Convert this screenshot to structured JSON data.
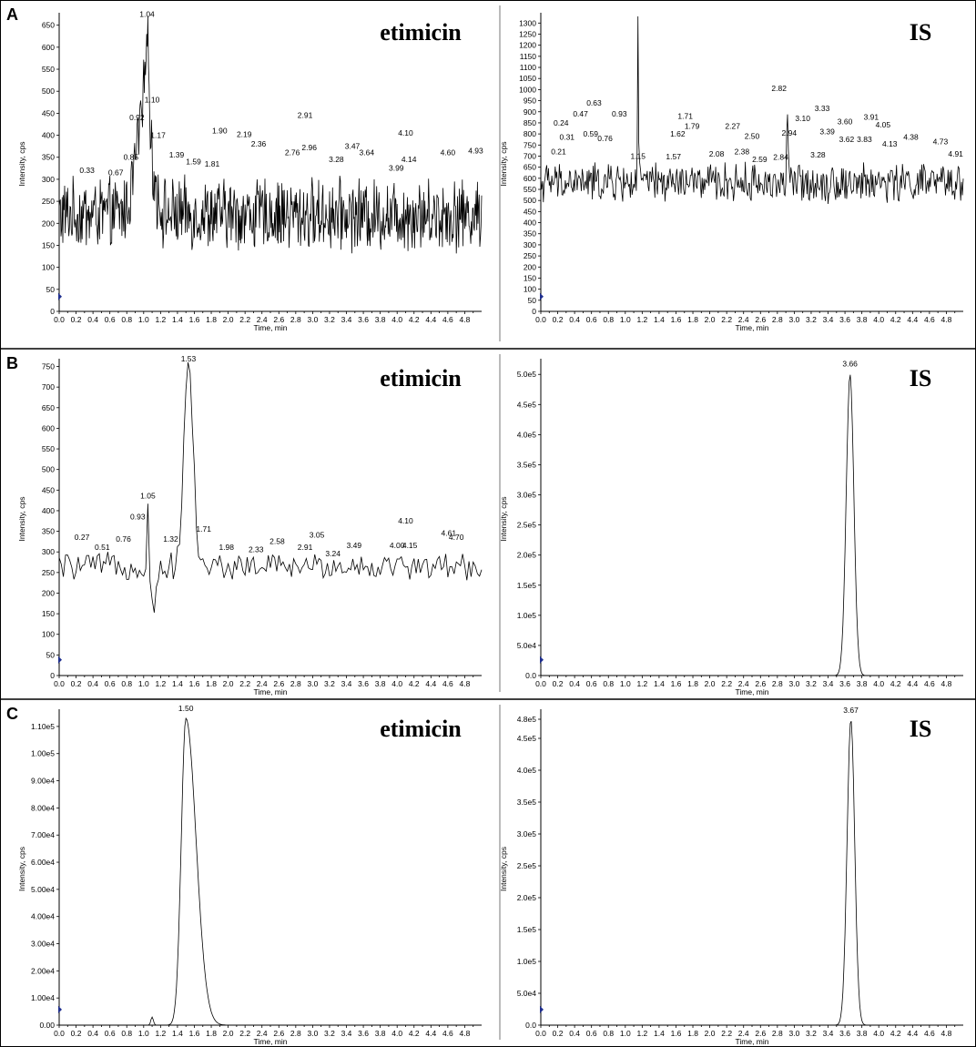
{
  "figure": {
    "row_labels": [
      "A",
      "B",
      "C"
    ],
    "x_axis_label": "Time, min",
    "y_axis_label": "Intensity, cps",
    "left_title": "etimicin",
    "right_title": "IS"
  },
  "chart_data": [
    {
      "panel": "A-left",
      "type": "line",
      "title": "etimicin",
      "xlabel": "Time, min",
      "ylabel": "Intensity, cps",
      "xlim": [
        0,
        5
      ],
      "ylim": [
        0,
        670
      ],
      "x_ticks": [
        "0.0",
        "0.2",
        "0.4",
        "0.6",
        "0.8",
        "1.0",
        "1.2",
        "1.4",
        "1.6",
        "1.8",
        "2.0",
        "2.2",
        "2.4",
        "2.6",
        "2.8",
        "3.0",
        "3.2",
        "3.4",
        "3.6",
        "3.8",
        "4.0",
        "4.2",
        "4.4",
        "4.6",
        "4.8"
      ],
      "y_ticks": [
        {
          "v": 0,
          "t": "0"
        },
        {
          "v": 50,
          "t": "50"
        },
        {
          "v": 100,
          "t": "100"
        },
        {
          "v": 150,
          "t": "150"
        },
        {
          "v": 200,
          "t": "200"
        },
        {
          "v": 250,
          "t": "250"
        },
        {
          "v": 300,
          "t": "300"
        },
        {
          "v": 350,
          "t": "350"
        },
        {
          "v": 400,
          "t": "400"
        },
        {
          "v": 450,
          "t": "450"
        },
        {
          "v": 500,
          "t": "500"
        },
        {
          "v": 550,
          "t": "550"
        },
        {
          "v": 600,
          "t": "600"
        },
        {
          "v": 650,
          "t": "650"
        }
      ],
      "noise": {
        "baseline": 220,
        "amplitude": 70,
        "points": 700
      },
      "peaks": [
        {
          "rt": 1.0,
          "height": 230,
          "width": 0.09
        },
        {
          "rt": 1.04,
          "height": 250,
          "width": 0.02
        }
      ],
      "peak_labels": [
        {
          "x": 0.33,
          "y": 310,
          "t": "0.33"
        },
        {
          "x": 0.67,
          "y": 305,
          "t": "0.67"
        },
        {
          "x": 0.85,
          "y": 340,
          "t": "0.85"
        },
        {
          "x": 0.92,
          "y": 430,
          "t": "0.92"
        },
        {
          "x": 1.04,
          "y": 665,
          "t": "1.04"
        },
        {
          "x": 1.1,
          "y": 470,
          "t": "1.10"
        },
        {
          "x": 1.17,
          "y": 390,
          "t": "1.17"
        },
        {
          "x": 1.39,
          "y": 345,
          "t": "1.39"
        },
        {
          "x": 1.59,
          "y": 330,
          "t": "1.59"
        },
        {
          "x": 1.81,
          "y": 325,
          "t": "1.81"
        },
        {
          "x": 1.9,
          "y": 400,
          "t": "1.90"
        },
        {
          "x": 2.19,
          "y": 392,
          "t": "2.19"
        },
        {
          "x": 2.36,
          "y": 370,
          "t": "2.36"
        },
        {
          "x": 2.76,
          "y": 350,
          "t": "2.76"
        },
        {
          "x": 2.91,
          "y": 435,
          "t": "2.91"
        },
        {
          "x": 2.96,
          "y": 362,
          "t": "2.96"
        },
        {
          "x": 3.28,
          "y": 335,
          "t": "3.28"
        },
        {
          "x": 3.47,
          "y": 365,
          "t": "3.47"
        },
        {
          "x": 3.64,
          "y": 350,
          "t": "3.64"
        },
        {
          "x": 3.99,
          "y": 315,
          "t": "3.99"
        },
        {
          "x": 4.1,
          "y": 395,
          "t": "4.10"
        },
        {
          "x": 4.14,
          "y": 335,
          "t": "4.14"
        },
        {
          "x": 4.6,
          "y": 350,
          "t": "4.60"
        },
        {
          "x": 4.93,
          "y": 355,
          "t": "4.93"
        }
      ]
    },
    {
      "panel": "A-right",
      "type": "line",
      "title": "IS",
      "xlabel": "Time, min",
      "ylabel": "Intensity, cps",
      "xlim": [
        0,
        5
      ],
      "ylim": [
        0,
        1330
      ],
      "x_ticks": [
        "0.0",
        "0.2",
        "0.4",
        "0.6",
        "0.8",
        "1.0",
        "1.2",
        "1.4",
        "1.6",
        "1.8",
        "2.0",
        "2.2",
        "2.4",
        "2.6",
        "2.8",
        "3.0",
        "3.2",
        "3.4",
        "3.6",
        "3.8",
        "4.0",
        "4.2",
        "4.4",
        "4.6",
        "4.8"
      ],
      "y_ticks": [
        {
          "v": 0,
          "t": "0"
        },
        {
          "v": 50,
          "t": "50"
        },
        {
          "v": 100,
          "t": "100"
        },
        {
          "v": 150,
          "t": "150"
        },
        {
          "v": 200,
          "t": "200"
        },
        {
          "v": 250,
          "t": "250"
        },
        {
          "v": 300,
          "t": "300"
        },
        {
          "v": 350,
          "t": "350"
        },
        {
          "v": 400,
          "t": "400"
        },
        {
          "v": 450,
          "t": "450"
        },
        {
          "v": 500,
          "t": "500"
        },
        {
          "v": 550,
          "t": "550"
        },
        {
          "v": 600,
          "t": "600"
        },
        {
          "v": 650,
          "t": "650"
        },
        {
          "v": 700,
          "t": "700"
        },
        {
          "v": 750,
          "t": "750"
        },
        {
          "v": 800,
          "t": "800"
        },
        {
          "v": 850,
          "t": "850"
        },
        {
          "v": 900,
          "t": "900"
        },
        {
          "v": 950,
          "t": "950"
        },
        {
          "v": 1000,
          "t": "1000"
        },
        {
          "v": 1050,
          "t": "1050"
        },
        {
          "v": 1100,
          "t": "1100"
        },
        {
          "v": 1150,
          "t": "1150"
        },
        {
          "v": 1200,
          "t": "1200"
        },
        {
          "v": 1250,
          "t": "1250"
        },
        {
          "v": 1300,
          "t": "1300"
        }
      ],
      "noise": {
        "baseline": 580,
        "amplitude": 75,
        "points": 500
      },
      "peaks": [
        {
          "rt": 1.15,
          "height": 750,
          "width": 0.006
        },
        {
          "rt": 2.92,
          "height": 330,
          "width": 0.008
        }
      ],
      "peak_labels": [
        {
          "x": 0.21,
          "y": 700,
          "t": "0.21"
        },
        {
          "x": 0.24,
          "y": 830,
          "t": "0.24"
        },
        {
          "x": 0.31,
          "y": 765,
          "t": "0.31"
        },
        {
          "x": 0.47,
          "y": 870,
          "t": "0.47"
        },
        {
          "x": 0.59,
          "y": 780,
          "t": "0.59"
        },
        {
          "x": 0.63,
          "y": 920,
          "t": "0.63"
        },
        {
          "x": 0.76,
          "y": 760,
          "t": "0.76"
        },
        {
          "x": 0.93,
          "y": 870,
          "t": "0.93"
        },
        {
          "x": 1.15,
          "y": 680,
          "t": "1.15"
        },
        {
          "x": 1.57,
          "y": 678,
          "t": "1.57"
        },
        {
          "x": 1.62,
          "y": 780,
          "t": "1.62"
        },
        {
          "x": 1.71,
          "y": 860,
          "t": "1.71"
        },
        {
          "x": 1.79,
          "y": 815,
          "t": "1.79"
        },
        {
          "x": 2.08,
          "y": 690,
          "t": "2.08"
        },
        {
          "x": 2.27,
          "y": 815,
          "t": "2.27"
        },
        {
          "x": 2.38,
          "y": 700,
          "t": "2.38"
        },
        {
          "x": 2.5,
          "y": 770,
          "t": "2.50"
        },
        {
          "x": 2.59,
          "y": 665,
          "t": "2.59"
        },
        {
          "x": 2.82,
          "y": 985,
          "t": "2.82"
        },
        {
          "x": 2.84,
          "y": 675,
          "t": "2.84"
        },
        {
          "x": 2.94,
          "y": 785,
          "t": "2.94"
        },
        {
          "x": 3.1,
          "y": 850,
          "t": "3.10"
        },
        {
          "x": 3.28,
          "y": 685,
          "t": "3.28"
        },
        {
          "x": 3.33,
          "y": 895,
          "t": "3.33"
        },
        {
          "x": 3.39,
          "y": 790,
          "t": "3.39"
        },
        {
          "x": 3.6,
          "y": 835,
          "t": "3.60"
        },
        {
          "x": 3.62,
          "y": 755,
          "t": "3.62"
        },
        {
          "x": 3.83,
          "y": 755,
          "t": "3.83"
        },
        {
          "x": 3.91,
          "y": 855,
          "t": "3.91"
        },
        {
          "x": 4.05,
          "y": 820,
          "t": "4.05"
        },
        {
          "x": 4.13,
          "y": 735,
          "t": "4.13"
        },
        {
          "x": 4.38,
          "y": 765,
          "t": "4.38"
        },
        {
          "x": 4.73,
          "y": 745,
          "t": "4.73"
        },
        {
          "x": 4.91,
          "y": 690,
          "t": "4.91"
        }
      ]
    },
    {
      "panel": "B-left",
      "type": "line",
      "title": "etimicin",
      "xlabel": "Time, min",
      "ylabel": "Intensity, cps",
      "xlim": [
        0,
        5
      ],
      "ylim": [
        0,
        760
      ],
      "x_ticks": [
        "0.0",
        "0.2",
        "0.4",
        "0.6",
        "0.8",
        "1.0",
        "1.2",
        "1.4",
        "1.6",
        "1.8",
        "2.0",
        "2.2",
        "2.4",
        "2.6",
        "2.8",
        "3.0",
        "3.2",
        "3.4",
        "3.6",
        "3.8",
        "4.0",
        "4.2",
        "4.4",
        "4.6",
        "4.8"
      ],
      "y_ticks": [
        {
          "v": 0,
          "t": "0"
        },
        {
          "v": 50,
          "t": "50"
        },
        {
          "v": 100,
          "t": "100"
        },
        {
          "v": 150,
          "t": "150"
        },
        {
          "v": 200,
          "t": "200"
        },
        {
          "v": 250,
          "t": "250"
        },
        {
          "v": 300,
          "t": "300"
        },
        {
          "v": 350,
          "t": "350"
        },
        {
          "v": 400,
          "t": "400"
        },
        {
          "v": 450,
          "t": "450"
        },
        {
          "v": 500,
          "t": "500"
        },
        {
          "v": 550,
          "t": "550"
        },
        {
          "v": 600,
          "t": "600"
        },
        {
          "v": 650,
          "t": "650"
        },
        {
          "v": 700,
          "t": "700"
        },
        {
          "v": 750,
          "t": "750"
        }
      ],
      "noise": {
        "baseline": 265,
        "amplitude": 28,
        "points": 200
      },
      "peaks": [
        {
          "rt": 1.53,
          "height": 490,
          "width": 0.055
        },
        {
          "rt": 1.05,
          "height": 150,
          "width": 0.012
        },
        {
          "rt": 1.12,
          "height": -110,
          "width": 0.03
        }
      ],
      "peak_labels": [
        {
          "x": 0.27,
          "y": 325,
          "t": "0.27"
        },
        {
          "x": 0.51,
          "y": 300,
          "t": "0.51"
        },
        {
          "x": 0.76,
          "y": 320,
          "t": "0.76"
        },
        {
          "x": 0.93,
          "y": 375,
          "t": "0.93"
        },
        {
          "x": 1.05,
          "y": 425,
          "t": "1.05"
        },
        {
          "x": 1.32,
          "y": 320,
          "t": "1.32"
        },
        {
          "x": 1.53,
          "y": 758,
          "t": "1.53"
        },
        {
          "x": 1.71,
          "y": 345,
          "t": "1.71"
        },
        {
          "x": 1.98,
          "y": 300,
          "t": "1.98"
        },
        {
          "x": 2.33,
          "y": 295,
          "t": "2.33"
        },
        {
          "x": 2.58,
          "y": 315,
          "t": "2.58"
        },
        {
          "x": 2.91,
          "y": 300,
          "t": "2.91"
        },
        {
          "x": 3.05,
          "y": 330,
          "t": "3.05"
        },
        {
          "x": 3.24,
          "y": 285,
          "t": "3.24"
        },
        {
          "x": 3.49,
          "y": 305,
          "t": "3.49"
        },
        {
          "x": 4.0,
          "y": 305,
          "t": "4.00"
        },
        {
          "x": 4.1,
          "y": 365,
          "t": "4.10"
        },
        {
          "x": 4.15,
          "y": 305,
          "t": "4.15"
        },
        {
          "x": 4.61,
          "y": 335,
          "t": "4.61"
        },
        {
          "x": 4.7,
          "y": 325,
          "t": "4.70"
        }
      ]
    },
    {
      "panel": "B-right",
      "type": "line",
      "title": "IS",
      "xlabel": "Time, min",
      "ylabel": "Intensity, cps",
      "xlim": [
        0,
        5
      ],
      "ylim": [
        0,
        520000
      ],
      "x_ticks": [
        "0.0",
        "0.2",
        "0.4",
        "0.6",
        "0.8",
        "1.0",
        "1.2",
        "1.4",
        "1.6",
        "1.8",
        "2.0",
        "2.2",
        "2.4",
        "2.6",
        "2.8",
        "3.0",
        "3.2",
        "3.4",
        "3.6",
        "3.8",
        "4.0",
        "4.2",
        "4.4",
        "4.6",
        "4.8"
      ],
      "y_ticks": [
        {
          "v": 0,
          "t": "0.0"
        },
        {
          "v": 50000,
          "t": "5.0e4"
        },
        {
          "v": 100000,
          "t": "1.0e5"
        },
        {
          "v": 150000,
          "t": "1.5e5"
        },
        {
          "v": 200000,
          "t": "2.0e5"
        },
        {
          "v": 250000,
          "t": "2.5e5"
        },
        {
          "v": 300000,
          "t": "3.0e5"
        },
        {
          "v": 350000,
          "t": "3.5e5"
        },
        {
          "v": 400000,
          "t": "4.0e5"
        },
        {
          "v": 450000,
          "t": "4.5e5"
        },
        {
          "v": 500000,
          "t": "5.0e5"
        }
      ],
      "noise": {
        "baseline": 0,
        "amplitude": 0,
        "points": 400
      },
      "peaks": [
        {
          "rt": 3.66,
          "height": 500000,
          "width": 0.045
        }
      ],
      "peak_labels": [
        {
          "x": 3.66,
          "y": 510000,
          "t": "3.66"
        }
      ]
    },
    {
      "panel": "C-left",
      "type": "line",
      "title": "etimicin",
      "xlabel": "Time, min",
      "ylabel": "Intensity, cps",
      "xlim": [
        0,
        5
      ],
      "ylim": [
        0,
        115000
      ],
      "x_ticks": [
        "0.0",
        "0.2",
        "0.4",
        "0.6",
        "0.8",
        "1.0",
        "1.2",
        "1.4",
        "1.6",
        "1.8",
        "2.0",
        "2.2",
        "2.4",
        "2.6",
        "2.8",
        "3.0",
        "3.2",
        "3.4",
        "3.6",
        "3.8",
        "4.0",
        "4.2",
        "4.4",
        "4.6",
        "4.8"
      ],
      "y_ticks": [
        {
          "v": 0,
          "t": "0.00"
        },
        {
          "v": 10000,
          "t": "1.00e4"
        },
        {
          "v": 20000,
          "t": "2.00e4"
        },
        {
          "v": 30000,
          "t": "3.00e4"
        },
        {
          "v": 40000,
          "t": "4.00e4"
        },
        {
          "v": 50000,
          "t": "5.00e4"
        },
        {
          "v": 60000,
          "t": "6.00e4"
        },
        {
          "v": 70000,
          "t": "7.00e4"
        },
        {
          "v": 80000,
          "t": "8.00e4"
        },
        {
          "v": 90000,
          "t": "9.00e4"
        },
        {
          "v": 100000,
          "t": "1.00e5"
        },
        {
          "v": 110000,
          "t": "1.10e5"
        }
      ],
      "noise": {
        "baseline": 0,
        "amplitude": 0,
        "points": 400
      },
      "peaks": [
        {
          "rt": 1.5,
          "height": 113000,
          "width": 0.055,
          "tail": 0.12
        },
        {
          "rt": 1.1,
          "height": 3000,
          "width": 0.015
        }
      ],
      "peak_labels": [
        {
          "x": 1.5,
          "y": 115000,
          "t": "1.50"
        }
      ]
    },
    {
      "panel": "C-right",
      "type": "line",
      "title": "IS",
      "xlabel": "Time, min",
      "ylabel": "Intensity, cps",
      "xlim": [
        0,
        5
      ],
      "ylim": [
        0,
        490000
      ],
      "x_ticks": [
        "0.0",
        "0.2",
        "0.4",
        "0.6",
        "0.8",
        "1.0",
        "1.2",
        "1.4",
        "1.6",
        "1.8",
        "2.0",
        "2.2",
        "2.4",
        "2.6",
        "2.8",
        "3.0",
        "3.2",
        "3.4",
        "3.6",
        "3.8",
        "4.0",
        "4.2",
        "4.4",
        "4.6",
        "4.8"
      ],
      "y_ticks": [
        {
          "v": 0,
          "t": "0.0"
        },
        {
          "v": 50000,
          "t": "5.0e4"
        },
        {
          "v": 100000,
          "t": "1.0e5"
        },
        {
          "v": 150000,
          "t": "1.5e5"
        },
        {
          "v": 200000,
          "t": "2.0e5"
        },
        {
          "v": 250000,
          "t": "2.5e5"
        },
        {
          "v": 300000,
          "t": "3.0e5"
        },
        {
          "v": 350000,
          "t": "3.5e5"
        },
        {
          "v": 400000,
          "t": "4.0e5"
        },
        {
          "v": 450000,
          "t": "4.5e5"
        },
        {
          "v": 480000,
          "t": "4.8e5"
        }
      ],
      "noise": {
        "baseline": 0,
        "amplitude": 0,
        "points": 400
      },
      "peaks": [
        {
          "rt": 3.67,
          "height": 480000,
          "width": 0.045
        }
      ],
      "peak_labels": [
        {
          "x": 3.67,
          "y": 487000,
          "t": "3.67"
        }
      ]
    }
  ]
}
